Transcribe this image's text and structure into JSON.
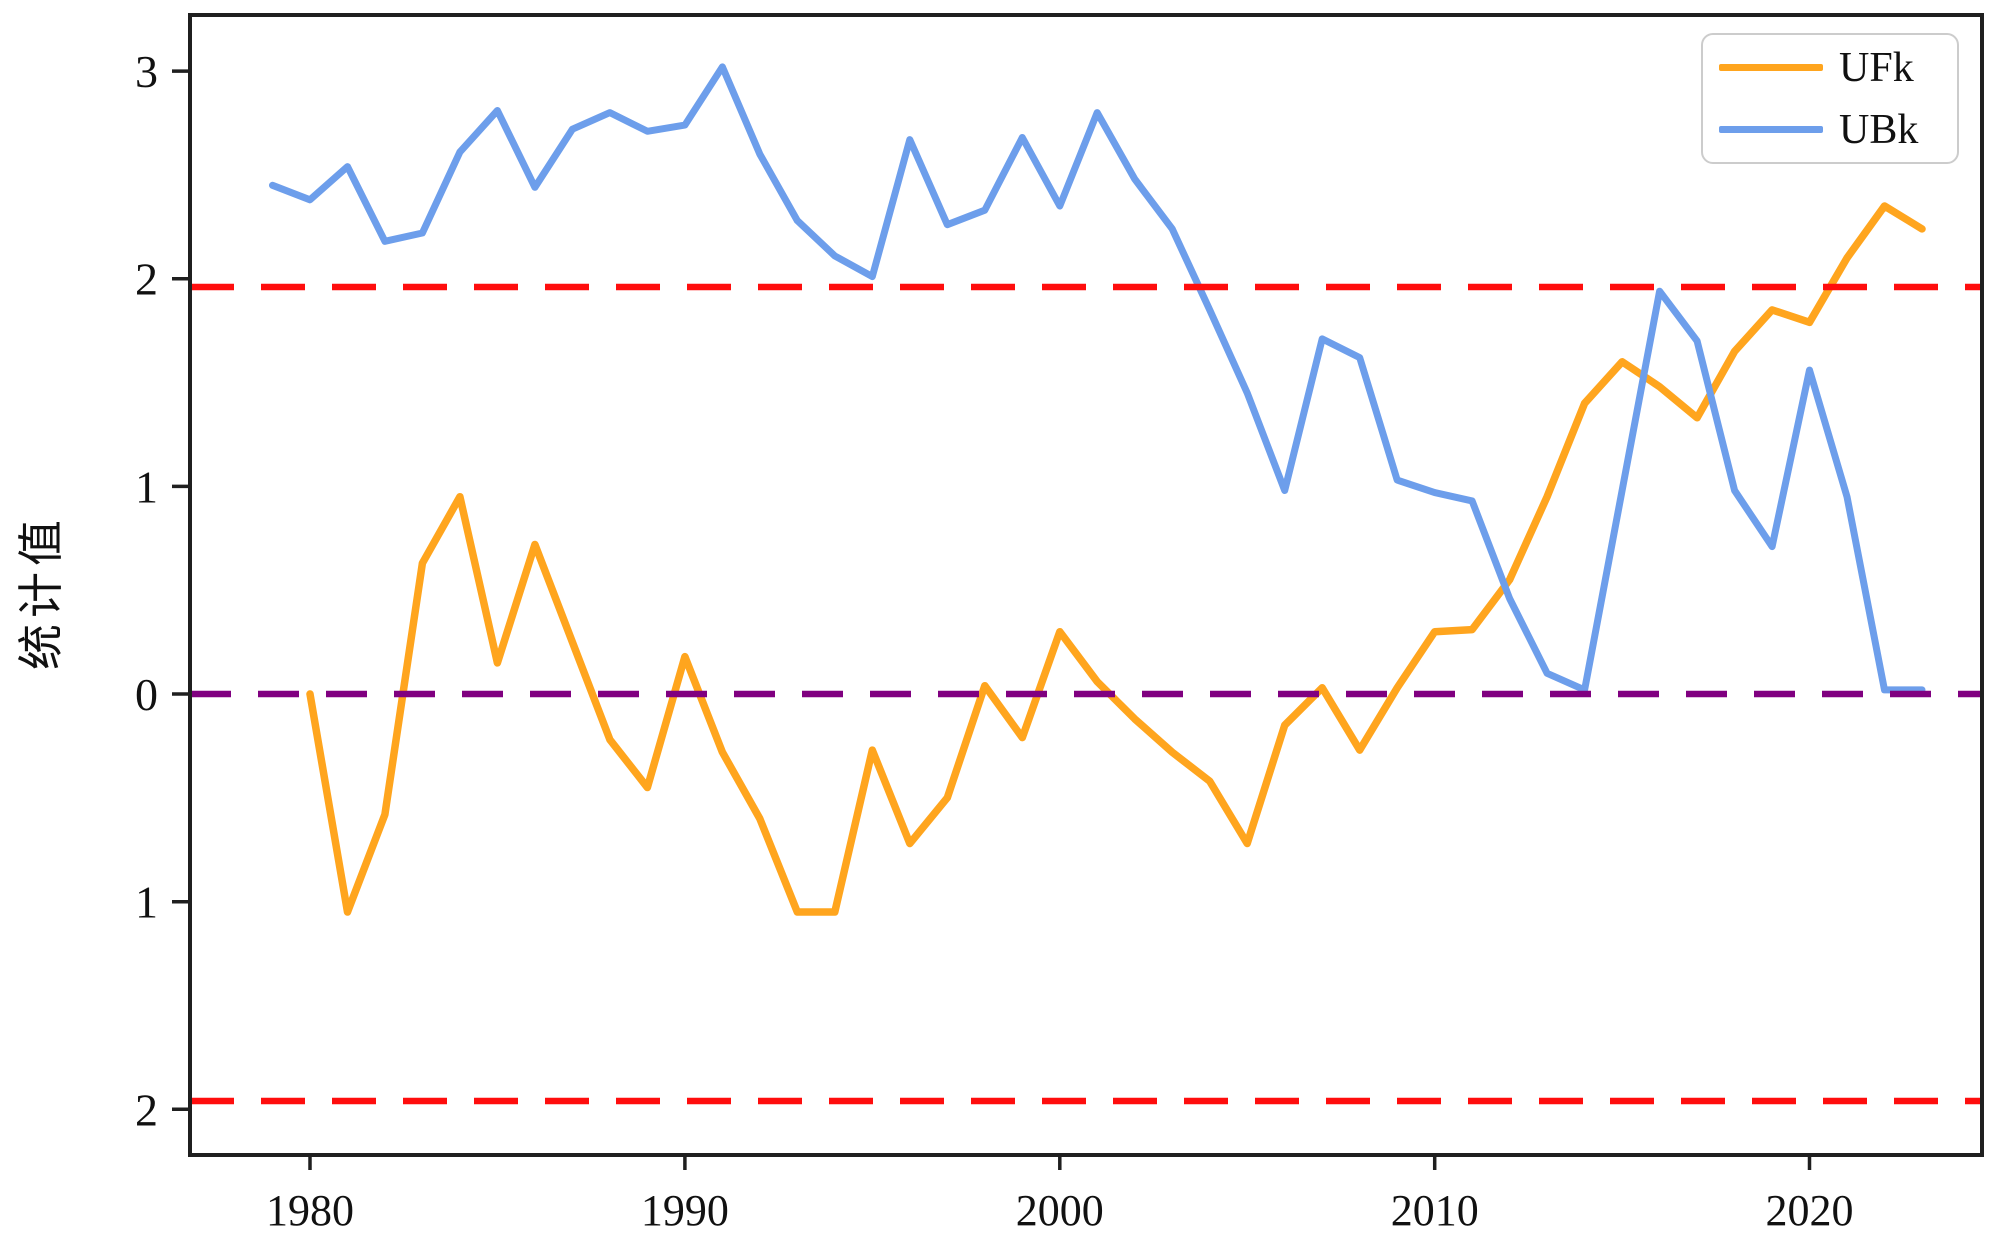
{
  "ylabel_note": "y-axis title shown rotated on the left",
  "legend": {
    "items": [
      {
        "label": "UFk",
        "color": "#FFA51E"
      },
      {
        "label": "UBk",
        "color": "#6D9EEB"
      }
    ]
  },
  "colors": {
    "ufk_line": "#FFA51E",
    "ubk_line": "#6D9EEB",
    "significance_line": "#FF0D0D",
    "zero_line": "#800080",
    "axis": "#1f1f1f",
    "text": "#111111",
    "legend_border": "#cccccc"
  },
  "chart_data": {
    "type": "line",
    "title": "",
    "xlabel": "",
    "ylabel": "统计值",
    "xlim": [
      1976.8,
      2024.6
    ],
    "ylim": [
      -2.22,
      3.27
    ],
    "grid": false,
    "legend_position": "upper right",
    "x_ticks": [
      1980,
      1990,
      2000,
      2010,
      2020
    ],
    "x_tick_labels": [
      "1980",
      "1990",
      "2000",
      "2010",
      "2020"
    ],
    "y_ticks": [
      3,
      2,
      1,
      0,
      -1,
      -2
    ],
    "y_tick_labels": [
      "3",
      "2",
      "1",
      "0",
      "1",
      "2"
    ],
    "reference_lines": [
      {
        "name": "upper-significance",
        "y": 1.96,
        "color": "#FF0D0D",
        "dash": [
          44,
          27
        ],
        "width": 6.5
      },
      {
        "name": "zero-line",
        "y": 0.0,
        "color": "#800080",
        "dash": [
          41,
          27
        ],
        "width": 6.5
      },
      {
        "name": "lower-significance",
        "y": -1.96,
        "color": "#FF0D0D",
        "dash": [
          44,
          27
        ],
        "width": 6.5
      }
    ],
    "series": [
      {
        "name": "UFk",
        "color": "#FFA51E",
        "width": 7.5,
        "x": [
          1980,
          1981,
          1982,
          1983,
          1984,
          1985,
          1986,
          1987,
          1988,
          1989,
          1990,
          1991,
          1992,
          1993,
          1994,
          1995,
          1996,
          1997,
          1998,
          1999,
          2000,
          2001,
          2002,
          2003,
          2004,
          2005,
          2006,
          2007,
          2008,
          2009,
          2010,
          2011,
          2012,
          2013,
          2014,
          2015,
          2016,
          2017,
          2018,
          2019,
          2020,
          2021,
          2022,
          2023
        ],
        "values": [
          0.0,
          -1.05,
          -0.58,
          0.63,
          0.95,
          0.15,
          0.72,
          0.25,
          -0.22,
          -0.45,
          0.18,
          -0.28,
          -0.6,
          -1.05,
          -1.05,
          -0.27,
          -0.72,
          -0.5,
          0.04,
          -0.21,
          0.3,
          0.06,
          -0.12,
          -0.28,
          -0.42,
          -0.72,
          -0.15,
          0.03,
          -0.27,
          0.03,
          0.3,
          0.31,
          0.55,
          0.95,
          1.4,
          1.6,
          1.48,
          1.33,
          1.65,
          1.85,
          1.79,
          2.1,
          2.35,
          2.24
        ]
      },
      {
        "name": "UBk",
        "color": "#6D9EEB",
        "width": 7,
        "x": [
          1979,
          1980,
          1981,
          1982,
          1983,
          1984,
          1985,
          1986,
          1987,
          1988,
          1989,
          1990,
          1991,
          1992,
          1993,
          1994,
          1995,
          1996,
          1997,
          1998,
          1999,
          2000,
          2001,
          2002,
          2003,
          2004,
          2005,
          2006,
          2007,
          2008,
          2009,
          2010,
          2011,
          2012,
          2013,
          2014,
          2015,
          2016,
          2017,
          2018,
          2019,
          2020,
          2021,
          2022,
          2023
        ],
        "values": [
          2.45,
          2.38,
          2.54,
          2.18,
          2.22,
          2.61,
          2.81,
          2.44,
          2.72,
          2.8,
          2.71,
          2.74,
          3.02,
          2.6,
          2.28,
          2.11,
          2.01,
          2.67,
          2.26,
          2.33,
          2.68,
          2.35,
          2.8,
          2.48,
          2.24,
          1.85,
          1.45,
          0.98,
          1.71,
          1.62,
          1.03,
          0.97,
          0.93,
          0.46,
          0.1,
          0.02,
          0.98,
          1.94,
          1.7,
          0.98,
          0.71,
          1.56,
          0.95,
          0.02,
          0.02
        ]
      }
    ]
  }
}
